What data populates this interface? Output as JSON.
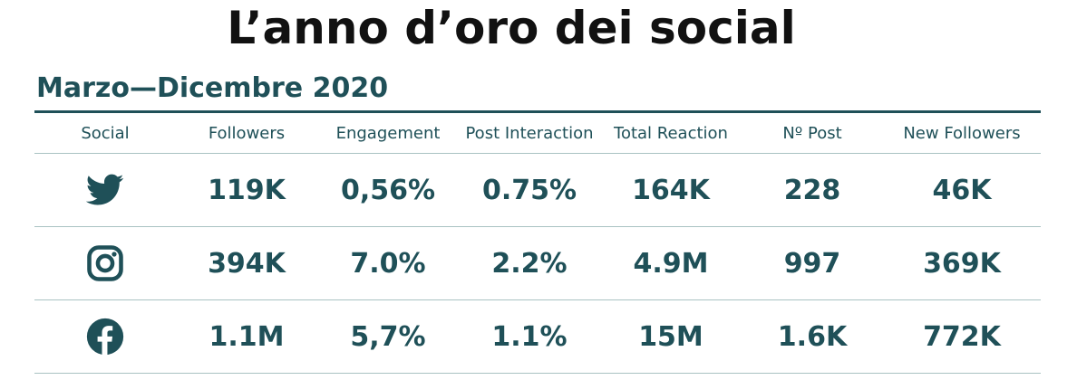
{
  "title": "L’anno d’oro dei social",
  "subtitle": "Marzo—Dicembre 2020",
  "colors": {
    "accent": "#1f5058",
    "title": "#111111",
    "divider": "#a9c2c2"
  },
  "table": {
    "headers": [
      "Social",
      "Followers",
      "Engagement",
      "Post Interaction",
      "Total Reaction",
      "Nº Post",
      "New Followers"
    ],
    "rows": [
      {
        "icon": "twitter-icon",
        "cells": [
          "119K",
          "0,56%",
          "0.75%",
          "164K",
          "228",
          "46K"
        ]
      },
      {
        "icon": "instagram-icon",
        "cells": [
          "394K",
          "7.0%",
          "2.2%",
          "4.9M",
          "997",
          "369K"
        ]
      },
      {
        "icon": "facebook-icon",
        "cells": [
          "1.1M",
          "5,7%",
          "1.1%",
          "15M",
          "1.6K",
          "772K"
        ]
      }
    ]
  }
}
